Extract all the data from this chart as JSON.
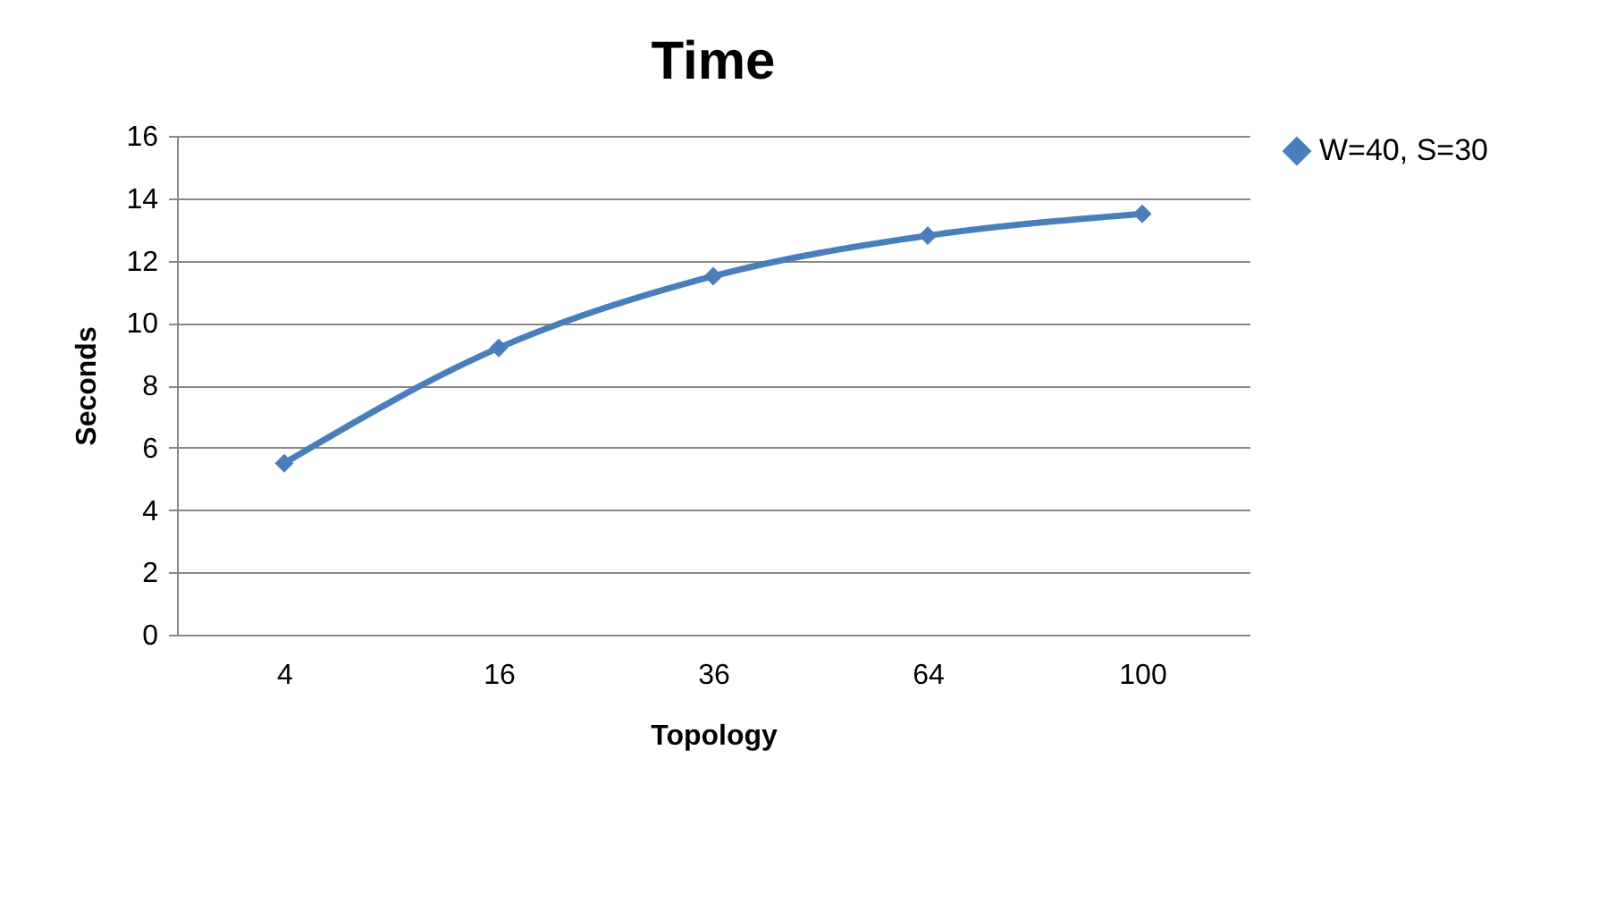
{
  "chart_data": {
    "type": "line",
    "title": "Time",
    "xlabel": "Topology",
    "ylabel": "Seconds",
    "categories": [
      "4",
      "16",
      "36",
      "64",
      "100"
    ],
    "series": [
      {
        "name": "W=40, S=30",
        "color": "#4a7ebb",
        "values": [
          5.5,
          9.2,
          11.5,
          12.8,
          13.5
        ]
      }
    ],
    "ylim": [
      0,
      16
    ],
    "yticks": [
      0,
      2,
      4,
      6,
      8,
      10,
      12,
      14,
      16
    ],
    "grid": "y",
    "legend": "right",
    "marker": "diamond",
    "line_style": "solid"
  }
}
